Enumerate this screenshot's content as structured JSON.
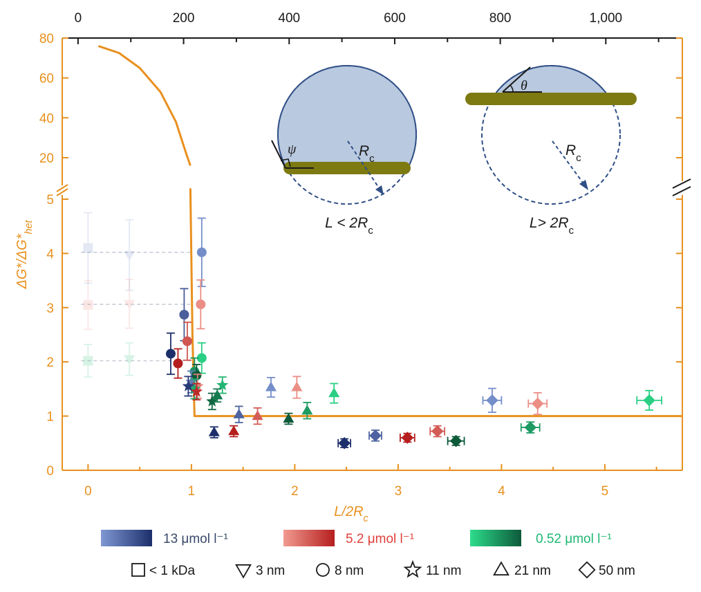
{
  "colors": {
    "axis_orange": "#e8901e",
    "black": "#1a1a1a",
    "blue_dark": "#1c2f6b",
    "blue_light": "#7f98d4",
    "red_dark": "#b51e1e",
    "red_light": "#f19a90",
    "green_dark": "#0d5a3a",
    "green_light": "#2ddc8c",
    "droplet_fill": "#b9c9df",
    "droplet_stroke": "#2f4f86",
    "film": "#7d7a12"
  },
  "chart_data": {
    "type": "scatter",
    "xlabel": "L/2R",
    "xlabel_sub": "c",
    "ylabel": "ΔG*/ΔG*",
    "ylabel_sub": "het",
    "x_ticks": [
      "0",
      "1",
      "2",
      "3",
      "4",
      "5"
    ],
    "x_top_ticks": [
      "0",
      "200",
      "400",
      "600",
      "800",
      "1,000"
    ],
    "y_ticks_lower": [
      "0",
      "1",
      "2",
      "3",
      "4",
      "5"
    ],
    "y_ticks_upper": [
      "20",
      "40",
      "60",
      "80"
    ],
    "x_range": [
      -0.25,
      5.75
    ],
    "x_top_range": [
      -30,
      1145
    ],
    "y_range_lower": [
      0,
      5
    ],
    "y_range_upper": [
      15,
      80
    ],
    "theory_curve": {
      "upper": [
        [
          0.1,
          76
        ],
        [
          0.3,
          72.5
        ],
        [
          0.5,
          65
        ],
        [
          0.7,
          53
        ],
        [
          0.85,
          38
        ],
        [
          0.95,
          22
        ],
        [
          0.99,
          16
        ]
      ],
      "lower": [
        [
          0.99,
          5.2
        ],
        [
          1.01,
          2.5
        ],
        [
          1.03,
          1.0
        ],
        [
          5.75,
          1.0
        ]
      ]
    },
    "reference_lines": [
      2.02,
      3.06,
      4.02
    ],
    "series": [
      {
        "name": "< 1 kDa",
        "marker": "square",
        "shade": "faded",
        "points": [
          {
            "x": 0,
            "y": 4.1,
            "err_y": 0.65,
            "conc": "13"
          },
          {
            "x": 0,
            "y": 3.05,
            "err_y": 0.45,
            "conc": "5.2"
          },
          {
            "x": 0,
            "y": 2.02,
            "err_y": 0.3,
            "conc": "0.52"
          }
        ]
      },
      {
        "name": "3 nm",
        "marker": "triangle-down",
        "shade": "faded",
        "points": [
          {
            "x": 0.4,
            "y": 3.97,
            "err_y": 0.65,
            "conc": "13"
          },
          {
            "x": 0.4,
            "y": 3.07,
            "err_y": 0.45,
            "conc": "5.2"
          },
          {
            "x": 0.4,
            "y": 2.05,
            "err_y": 0.3,
            "conc": "0.52"
          }
        ]
      },
      {
        "name": "8 nm",
        "marker": "circle",
        "points": [
          {
            "x": 1.1,
            "y": 4.02,
            "err_y": 0.63,
            "conc": "13",
            "tone": 0.1
          },
          {
            "x": 1.09,
            "y": 3.06,
            "err_y": 0.45,
            "conc": "5.2",
            "tone": 0.1
          },
          {
            "x": 1.1,
            "y": 2.07,
            "err_y": 0.28,
            "conc": "0.52",
            "tone": 0.1
          },
          {
            "x": 0.93,
            "y": 2.87,
            "err_y": 0.48,
            "conc": "13",
            "tone": 0.55
          },
          {
            "x": 0.96,
            "y": 2.38,
            "err_y": 0.35,
            "conc": "5.2",
            "tone": 0.55
          },
          {
            "x": 1.03,
            "y": 1.82,
            "err_y": 0.25,
            "conc": "0.52",
            "tone": 0.55
          },
          {
            "x": 0.8,
            "y": 2.15,
            "err_y": 0.38,
            "conc": "13",
            "tone": 1
          },
          {
            "x": 0.87,
            "y": 1.97,
            "err_y": 0.27,
            "conc": "5.2",
            "tone": 1
          },
          {
            "x": 1.05,
            "y": 1.75,
            "err_y": 0.2,
            "conc": "0.52",
            "tone": 1
          }
        ]
      },
      {
        "name": "11 nm",
        "marker": "star",
        "points": [
          {
            "x": 1.06,
            "y": 1.55,
            "err_y": 0.22,
            "conc": "5.2",
            "tone": 0.2
          },
          {
            "x": 1.0,
            "y": 1.63,
            "err_y": 0.2,
            "conc": "13",
            "tone": 0.3
          },
          {
            "x": 1.03,
            "y": 1.5,
            "err_y": 0.18,
            "conc": "0.52",
            "tone": 0.4
          },
          {
            "x": 0.97,
            "y": 1.55,
            "err_y": 0.18,
            "conc": "13",
            "tone": 0.9
          },
          {
            "x": 1.05,
            "y": 1.45,
            "err_y": 0.15,
            "conc": "5.2",
            "tone": 0.9
          },
          {
            "x": 1.3,
            "y": 1.57,
            "err_y": 0.15,
            "conc": "0.52",
            "tone": 0.3
          },
          {
            "x": 1.2,
            "y": 1.27,
            "err_y": 0.15,
            "conc": "0.52",
            "tone": 0.9
          }
        ]
      },
      {
        "name": "21 nm",
        "marker": "triangle-up",
        "points": [
          {
            "x": 1.77,
            "y": 1.53,
            "err_y": 0.18,
            "conc": "13",
            "tone": 0.1
          },
          {
            "x": 2.02,
            "y": 1.53,
            "err_y": 0.2,
            "conc": "5.2",
            "tone": 0.1
          },
          {
            "x": 2.38,
            "y": 1.42,
            "err_y": 0.18,
            "conc": "0.52",
            "tone": 0.1
          },
          {
            "x": 1.46,
            "y": 1.03,
            "err_y": 0.15,
            "conc": "13",
            "tone": 0.5
          },
          {
            "x": 1.64,
            "y": 1.0,
            "err_y": 0.15,
            "conc": "5.2",
            "tone": 0.5
          },
          {
            "x": 2.12,
            "y": 1.1,
            "err_y": 0.15,
            "conc": "0.52",
            "tone": 0.5
          },
          {
            "x": 1.22,
            "y": 0.7,
            "err_y": 0.1,
            "conc": "13",
            "tone": 1
          },
          {
            "x": 1.41,
            "y": 0.72,
            "err_y": 0.1,
            "conc": "5.2",
            "tone": 1
          },
          {
            "x": 1.94,
            "y": 0.95,
            "err_y": 0.1,
            "conc": "0.52",
            "tone": 1
          },
          {
            "x": 1.25,
            "y": 1.38,
            "err_y": 0.12,
            "conc": "0.52",
            "tone": 0.75
          }
        ]
      },
      {
        "name": "50 nm",
        "marker": "diamond",
        "points": [
          {
            "x": 3.91,
            "y": 1.29,
            "err_y": 0.22,
            "err_x": 0.09,
            "conc": "13",
            "tone": 0.1
          },
          {
            "x": 4.35,
            "y": 1.23,
            "err_y": 0.2,
            "err_x": 0.09,
            "conc": "5.2",
            "tone": 0.1
          },
          {
            "x": 5.43,
            "y": 1.29,
            "err_y": 0.18,
            "err_x": 0.12,
            "conc": "0.52",
            "tone": 0.1
          },
          {
            "x": 2.78,
            "y": 0.64,
            "err_y": 0.1,
            "err_x": 0.06,
            "conc": "13",
            "tone": 0.5
          },
          {
            "x": 3.38,
            "y": 0.72,
            "err_y": 0.1,
            "err_x": 0.07,
            "conc": "5.2",
            "tone": 0.5
          },
          {
            "x": 4.28,
            "y": 0.79,
            "err_y": 0.1,
            "err_x": 0.09,
            "conc": "0.52",
            "tone": 0.5
          },
          {
            "x": 2.48,
            "y": 0.5,
            "err_y": 0.08,
            "err_x": 0.06,
            "conc": "13",
            "tone": 1
          },
          {
            "x": 3.09,
            "y": 0.6,
            "err_y": 0.08,
            "err_x": 0.07,
            "conc": "5.2",
            "tone": 1
          },
          {
            "x": 3.56,
            "y": 0.54,
            "err_y": 0.08,
            "err_x": 0.08,
            "conc": "0.52",
            "tone": 1
          }
        ]
      }
    ],
    "legend_concentrations": [
      {
        "label": "13 μmol l⁻¹",
        "conc": "13"
      },
      {
        "label": "5.2 μmol l⁻¹",
        "conc": "5.2"
      },
      {
        "label": "0.52 μmol l⁻¹",
        "conc": "0.52"
      }
    ],
    "legend_markers": [
      {
        "label": "< 1 kDa",
        "marker": "square"
      },
      {
        "label": "3 nm",
        "marker": "triangle-down"
      },
      {
        "label": "8 nm",
        "marker": "circle"
      },
      {
        "label": "11 nm",
        "marker": "star"
      },
      {
        "label": "21 nm",
        "marker": "triangle-up"
      },
      {
        "label": "50 nm",
        "marker": "diamond"
      }
    ]
  },
  "insets": {
    "left": {
      "angle": "ψ",
      "radius": "R",
      "radius_sub": "c",
      "condition": "L < 2R",
      "condition_sub": "c"
    },
    "right": {
      "angle": "θ",
      "radius": "R",
      "radius_sub": "c",
      "condition": "L> 2R",
      "condition_sub": "c"
    }
  }
}
